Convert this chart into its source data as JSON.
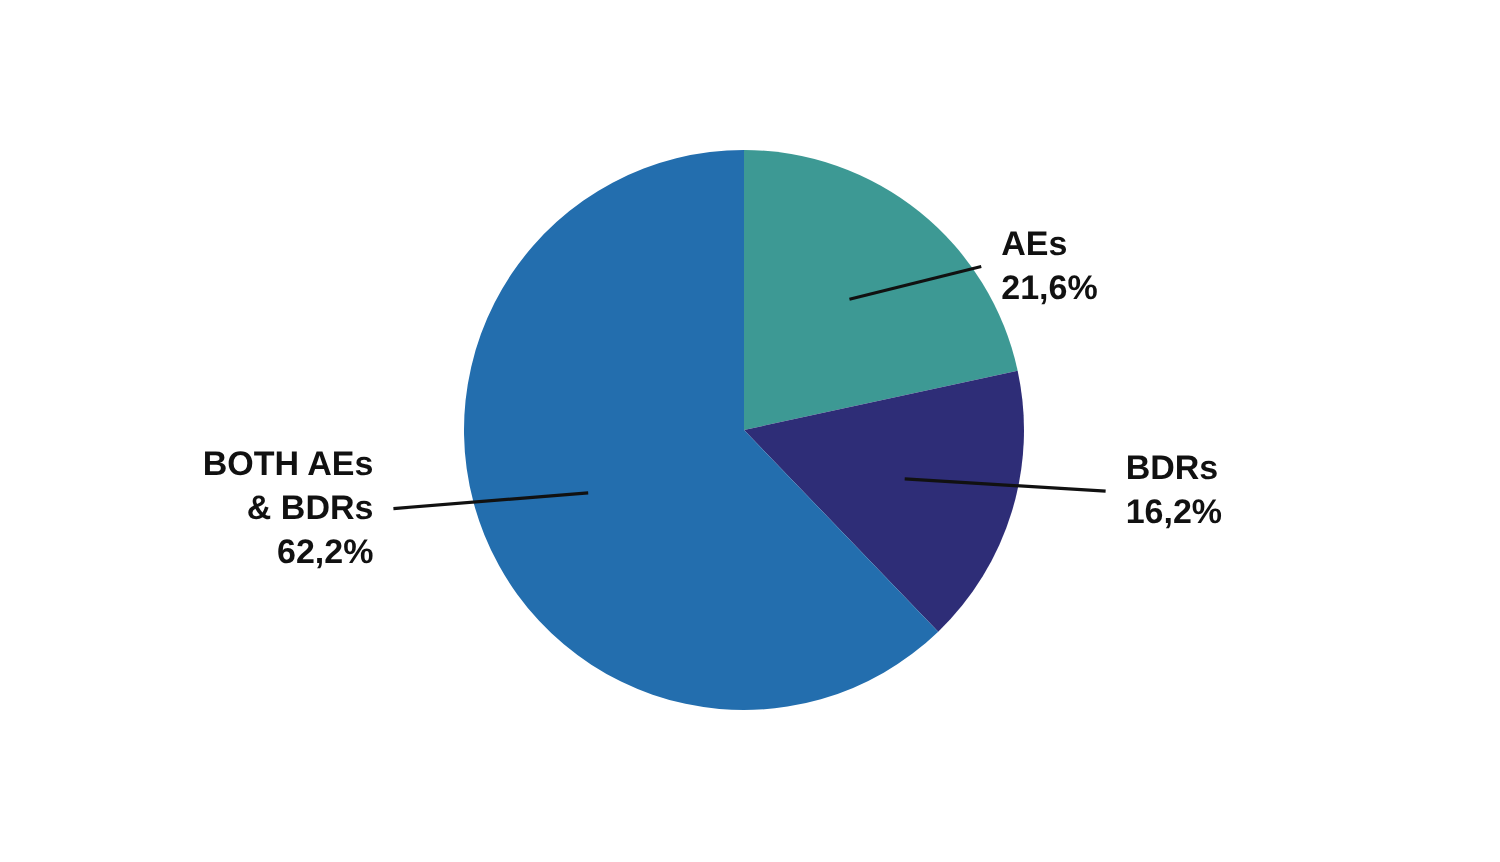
{
  "chart_data": {
    "type": "pie",
    "categories": [
      "AEs",
      "BDRs",
      "BOTH AEs & BDRs"
    ],
    "values": [
      21.6,
      16.2,
      62.2
    ],
    "colors": [
      "#3d9994",
      "#2e2d77",
      "#236eae"
    ],
    "value_labels": [
      "21,6%",
      "16,2%",
      "62,2%"
    ]
  }
}
